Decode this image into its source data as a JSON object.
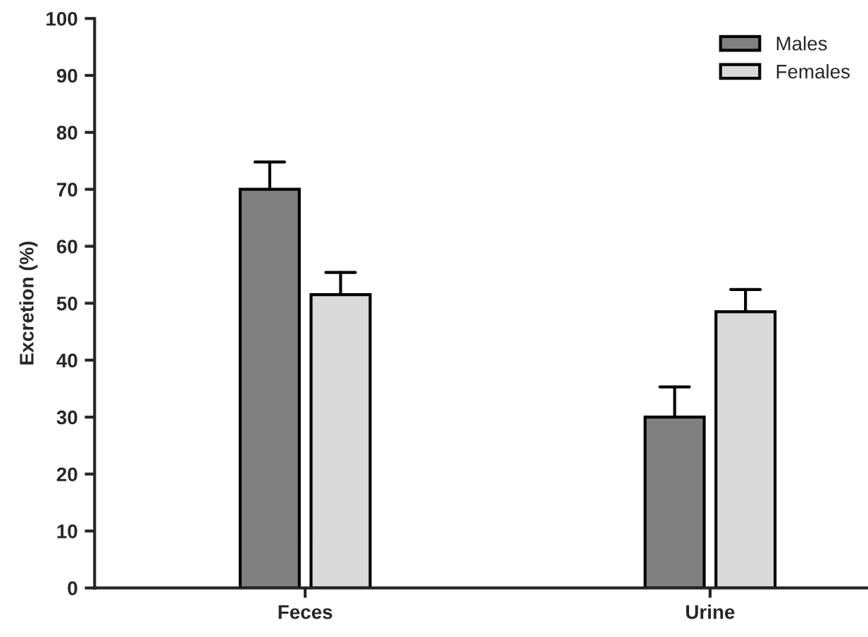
{
  "chart_data": {
    "type": "bar",
    "ylabel": "Excretion (%)",
    "categories": [
      "Feces",
      "Urine"
    ],
    "series": [
      {
        "name": "Males",
        "color": "#808080",
        "values": [
          70,
          30
        ],
        "errors": [
          [
            70,
            74.8
          ],
          [
            30,
            35.3
          ]
        ]
      },
      {
        "name": "Females",
        "color": "#d9d9d9",
        "values": [
          51.5,
          48.5
        ],
        "errors": [
          [
            51.5,
            55.4
          ],
          [
            48.5,
            52.4
          ]
        ]
      }
    ],
    "ylim": [
      0,
      100
    ],
    "yticks": [
      0,
      10,
      20,
      30,
      40,
      50,
      60,
      70,
      80,
      90,
      100
    ],
    "grid": false,
    "legend": "top right"
  }
}
